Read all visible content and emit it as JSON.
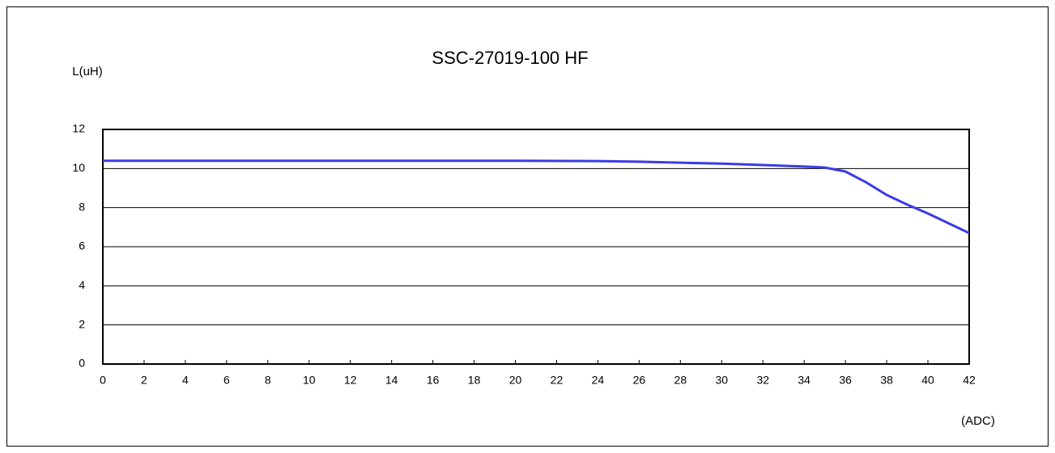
{
  "chart_data": {
    "type": "line",
    "title": "SSC-27019-100 HF",
    "y_label": "L(uH)",
    "x_label": "(ADC)",
    "x": [
      0,
      10,
      20,
      24,
      26,
      28,
      30,
      32,
      34,
      35,
      36,
      37,
      38,
      39,
      40,
      41,
      42
    ],
    "values": [
      10.4,
      10.4,
      10.4,
      10.38,
      10.35,
      10.3,
      10.25,
      10.18,
      10.1,
      10.05,
      9.85,
      9.3,
      8.65,
      8.15,
      7.7,
      7.2,
      6.7
    ],
    "color": "#3b3be6",
    "xlim": [
      0,
      42
    ],
    "xticks": [
      0,
      2,
      4,
      6,
      8,
      10,
      12,
      14,
      16,
      18,
      20,
      22,
      24,
      26,
      28,
      30,
      32,
      34,
      36,
      38,
      40,
      42
    ],
    "ylim": [
      0,
      12
    ],
    "yticks": [
      0,
      2,
      4,
      6,
      8,
      10,
      12
    ],
    "grid": true
  }
}
